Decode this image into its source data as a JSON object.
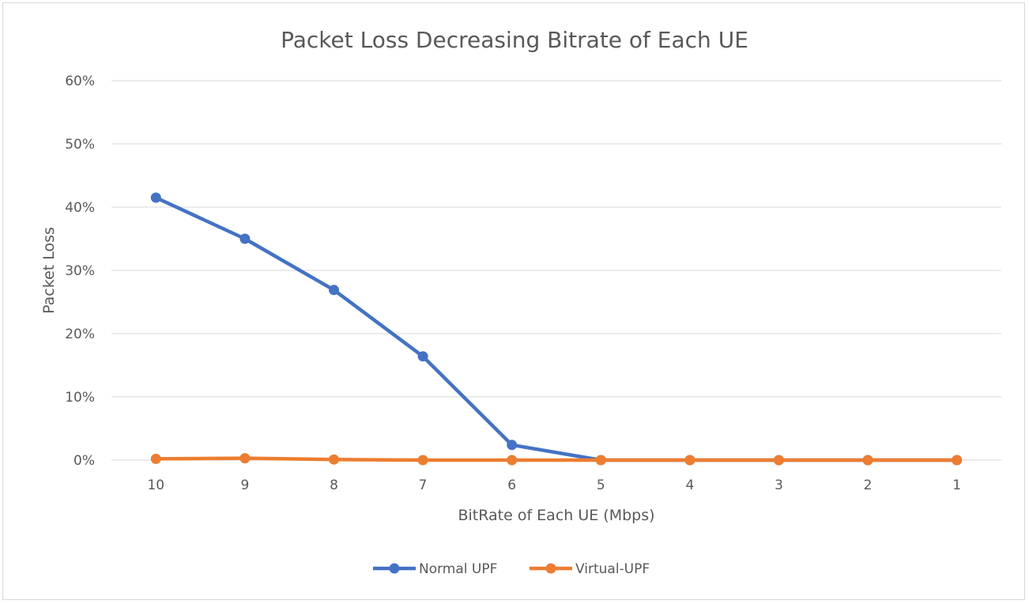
{
  "chart_data": {
    "type": "line",
    "title": "Packet Loss Decreasing Bitrate of Each UE",
    "xlabel": "BitRate of Each UE (Mbps)",
    "ylabel": "Packet Loss",
    "categories": [
      "10",
      "9",
      "8",
      "7",
      "6",
      "5",
      "4",
      "3",
      "2",
      "1"
    ],
    "y_ticks": [
      "0%",
      "10%",
      "20%",
      "30%",
      "40%",
      "50%",
      "60%"
    ],
    "ylim": [
      0,
      0.6
    ],
    "grid": true,
    "legend_position": "bottom",
    "series": [
      {
        "name": "Normal UPF",
        "color": "#4472c4",
        "values": [
          0.415,
          0.35,
          0.269,
          0.164,
          0.024,
          0.0,
          0.0,
          0.0,
          0.0,
          0.0
        ]
      },
      {
        "name": "Virtual-UPF",
        "color": "#ed7d31",
        "values": [
          0.002,
          0.003,
          0.001,
          0.0,
          0.0,
          0.0,
          0.0,
          0.0,
          0.0,
          0.0
        ]
      }
    ]
  }
}
